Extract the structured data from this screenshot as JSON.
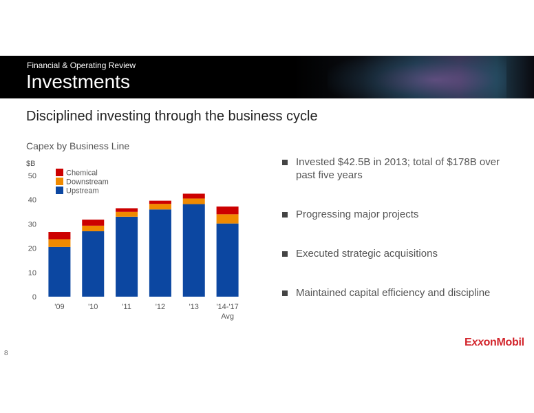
{
  "header": {
    "kicker": "Financial & Operating Review",
    "title": "Investments"
  },
  "subtitle": "Disciplined investing through the business cycle",
  "chart_data": {
    "type": "bar",
    "stacked": true,
    "title": "Capex by Business Line",
    "ylabel": "$B",
    "ylim": [
      0,
      50
    ],
    "yticks": [
      0,
      10,
      20,
      30,
      40,
      50
    ],
    "categories": [
      "'09",
      "'10",
      "'11",
      "'12",
      "'13",
      "'14-'17 Avg"
    ],
    "series": [
      {
        "name": "Upstream",
        "color": "#0c47a1",
        "values": [
          20.5,
          27.0,
          33.0,
          36.0,
          38.2,
          30.2
        ]
      },
      {
        "name": "Downstream",
        "color": "#f08a00",
        "values": [
          3.2,
          2.3,
          2.0,
          2.3,
          2.3,
          3.8
        ]
      },
      {
        "name": "Chemical",
        "color": "#cc0000",
        "values": [
          3.0,
          2.5,
          1.5,
          1.3,
          2.0,
          3.2
        ]
      }
    ],
    "legend": {
      "position": "top-left",
      "order": [
        "Chemical",
        "Downstream",
        "Upstream"
      ]
    },
    "grid": false
  },
  "bullets": [
    "Invested $42.5B in 2013; total of $178B over past five years",
    "Progressing major projects",
    "Executed strategic acquisitions",
    "Maintained capital efficiency and discipline"
  ],
  "footer": {
    "page_number": "8",
    "logo_pre": "E",
    "logo_xx": "xx",
    "logo_post": "onMobil"
  }
}
